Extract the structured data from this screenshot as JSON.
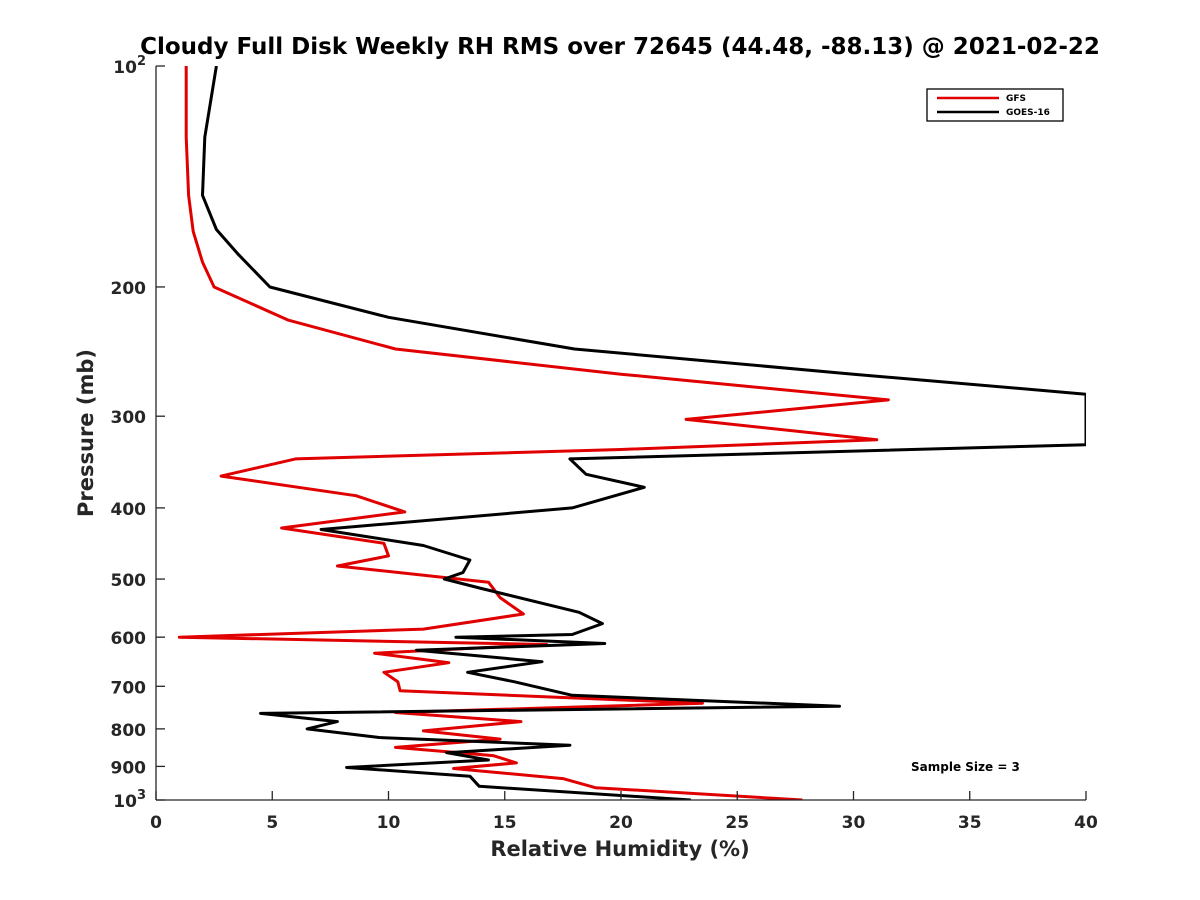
{
  "chart_data": {
    "type": "line",
    "title": "Cloudy Full Disk Weekly RH RMS over 72645 (44.48, -88.13) @ 2021-02-22",
    "xlabel": "Relative Humidity (%)",
    "ylabel": "Pressure (mb)",
    "xlim": [
      0,
      40
    ],
    "ylim": [
      100,
      1000
    ],
    "yscale": "log",
    "y_reversed": true,
    "grid": false,
    "legend_position": "top-right",
    "x_ticks": [
      0,
      5,
      10,
      15,
      20,
      25,
      30,
      35,
      40
    ],
    "x_tick_labels": [
      "0",
      "5",
      "10",
      "15",
      "20",
      "25",
      "30",
      "35",
      "40"
    ],
    "y_ticks": [
      100,
      200,
      300,
      400,
      500,
      600,
      700,
      800,
      900,
      1000
    ],
    "y_tick_labels": [
      {
        "base": "10",
        "exp": "2"
      },
      {
        "base": "200",
        "exp": ""
      },
      {
        "base": "300",
        "exp": ""
      },
      {
        "base": "400",
        "exp": ""
      },
      {
        "base": "500",
        "exp": ""
      },
      {
        "base": "600",
        "exp": ""
      },
      {
        "base": "700",
        "exp": ""
      },
      {
        "base": "800",
        "exp": ""
      },
      {
        "base": "900",
        "exp": ""
      },
      {
        "base": "10",
        "exp": "3"
      }
    ],
    "annotation": "Sample Size = 3",
    "series": [
      {
        "name": "GFS",
        "color": "#e00000",
        "points": [
          [
            1.3,
            100
          ],
          [
            1.3,
            125
          ],
          [
            1.4,
            150
          ],
          [
            1.6,
            168
          ],
          [
            2.0,
            185
          ],
          [
            2.5,
            200
          ],
          [
            5.7,
            222
          ],
          [
            10.3,
            243
          ],
          [
            20.0,
            263
          ],
          [
            31.5,
            285
          ],
          [
            22.8,
            303
          ],
          [
            31.0,
            323
          ],
          [
            20.0,
            333
          ],
          [
            6.0,
            343
          ],
          [
            2.8,
            362
          ],
          [
            8.6,
            385
          ],
          [
            10.7,
            405
          ],
          [
            5.4,
            426
          ],
          [
            9.8,
            447
          ],
          [
            10.0,
            465
          ],
          [
            7.8,
            480
          ],
          [
            14.3,
            505
          ],
          [
            14.8,
            530
          ],
          [
            15.8,
            558
          ],
          [
            11.5,
            585
          ],
          [
            1.0,
            600
          ],
          [
            16.8,
            614
          ],
          [
            9.4,
            631
          ],
          [
            12.6,
            650
          ],
          [
            9.8,
            670
          ],
          [
            10.4,
            690
          ],
          [
            10.5,
            710
          ],
          [
            23.5,
            738
          ],
          [
            10.3,
            760
          ],
          [
            15.7,
            782
          ],
          [
            11.5,
            805
          ],
          [
            14.8,
            826
          ],
          [
            10.3,
            848
          ],
          [
            14.5,
            870
          ],
          [
            15.5,
            890
          ],
          [
            12.8,
            906
          ],
          [
            17.5,
            935
          ],
          [
            18.9,
            962
          ],
          [
            27.8,
            1000
          ]
        ]
      },
      {
        "name": "GOES-16",
        "color": "#000000",
        "points": [
          [
            2.6,
            100
          ],
          [
            2.1,
            125
          ],
          [
            2.0,
            150
          ],
          [
            2.6,
            167
          ],
          [
            3.5,
            180
          ],
          [
            4.9,
            200
          ],
          [
            10.0,
            220
          ],
          [
            18.0,
            243
          ],
          [
            30.0,
            263
          ],
          [
            40.0,
            280
          ],
          [
            40.0,
            328
          ],
          [
            17.8,
            343
          ],
          [
            18.5,
            360
          ],
          [
            21.0,
            375
          ],
          [
            17.9,
            400
          ],
          [
            7.1,
            428
          ],
          [
            11.5,
            450
          ],
          [
            13.5,
            471
          ],
          [
            13.2,
            490
          ],
          [
            12.4,
            500
          ],
          [
            14.0,
            515
          ],
          [
            18.2,
            555
          ],
          [
            19.2,
            575
          ],
          [
            17.9,
            595
          ],
          [
            12.9,
            600
          ],
          [
            19.3,
            612
          ],
          [
            11.2,
            625
          ],
          [
            16.6,
            648
          ],
          [
            13.4,
            670
          ],
          [
            15.4,
            690
          ],
          [
            17.9,
            720
          ],
          [
            29.4,
            745
          ],
          [
            4.5,
            762
          ],
          [
            7.8,
            782
          ],
          [
            6.5,
            800
          ],
          [
            9.6,
            822
          ],
          [
            17.8,
            842
          ],
          [
            12.5,
            862
          ],
          [
            14.3,
            882
          ],
          [
            8.2,
            903
          ],
          [
            13.5,
            928
          ],
          [
            13.9,
            958
          ],
          [
            23.0,
            1000
          ]
        ]
      }
    ]
  }
}
